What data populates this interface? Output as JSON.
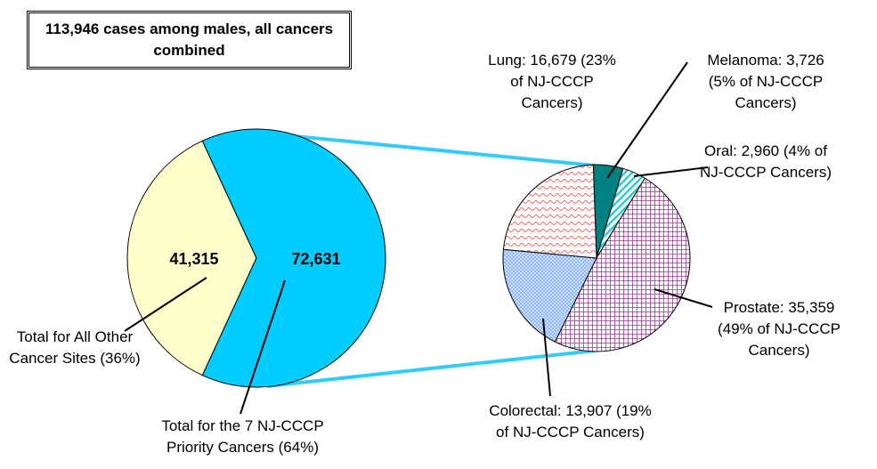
{
  "chart_data": [
    {
      "type": "pie",
      "title": "113,946 cases among males, all cancers combined",
      "labels": [
        "Total for All Other Cancer Sites (36%)",
        "Total for the 7 NJ-CCCP Priority Cancers (64%)"
      ],
      "values": [
        41315,
        72631
      ],
      "value_labels": [
        "41,315",
        "72,631"
      ],
      "colors": [
        "#ffffcc",
        "#00ccff"
      ]
    },
    {
      "type": "pie",
      "labels": [
        "Melanoma: 3,726 (5% of NJ-CCCP Cancers)",
        "Oral: 2,960 (4% of NJ-CCCP Cancers)",
        "Prostate: 35,359 (49% of NJ-CCCP Cancers)",
        "Colorectal: 13,907 (19% of NJ-CCCP Cancers)",
        "Lung: 16,679 (23% of NJ-CCCP Cancers)"
      ],
      "values": [
        3726,
        2960,
        35359,
        13907,
        16679
      ],
      "colors": [
        "#008080",
        "#33cccc",
        "#993399",
        "#6699ff",
        "#ff6666"
      ],
      "patterns": [
        "solid",
        "stripes",
        "grid",
        "dots",
        "waves"
      ]
    }
  ]
}
